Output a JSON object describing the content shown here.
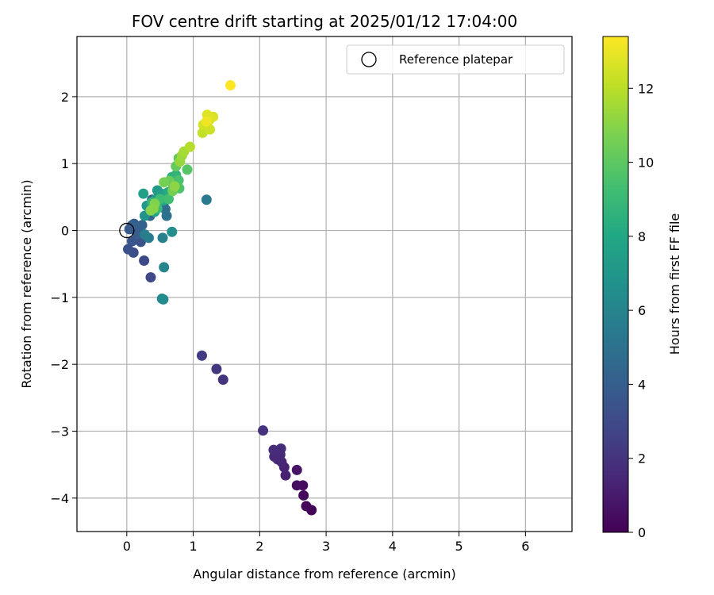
{
  "chart_data": {
    "type": "scatter",
    "title": "FOV centre drift starting at 2025/01/12 17:04:00",
    "xlabel": "Angular distance from reference (arcmin)",
    "ylabel": "Rotation from reference (arcmin)",
    "xlim": [
      -0.75,
      6.7
    ],
    "ylim": [
      -4.5,
      2.9
    ],
    "xticks": [
      0,
      1,
      2,
      3,
      4,
      5,
      6
    ],
    "yticks": [
      -4,
      -3,
      -2,
      -1,
      0,
      1,
      2
    ],
    "grid": true,
    "legend": {
      "placement": "top-right",
      "entries": [
        "Reference platepar"
      ]
    },
    "reference_point": {
      "x": 0,
      "y": 0
    },
    "colorbar": {
      "label": "Hours from first FF file",
      "colormap": "viridis",
      "range": [
        0,
        13.4
      ],
      "ticks": [
        0,
        2,
        4,
        6,
        8,
        10,
        12
      ]
    },
    "points": [
      {
        "x": 2.78,
        "y": -4.18,
        "c": 0.1
      },
      {
        "x": 2.7,
        "y": -4.12,
        "c": 0.2
      },
      {
        "x": 2.66,
        "y": -3.96,
        "c": 0.3
      },
      {
        "x": 2.65,
        "y": -3.81,
        "c": 0.4
      },
      {
        "x": 2.56,
        "y": -3.81,
        "c": 0.5
      },
      {
        "x": 2.56,
        "y": -3.58,
        "c": 0.7
      },
      {
        "x": 2.39,
        "y": -3.66,
        "c": 1.2
      },
      {
        "x": 2.37,
        "y": -3.54,
        "c": 1.3
      },
      {
        "x": 2.33,
        "y": -3.46,
        "c": 1.4
      },
      {
        "x": 2.27,
        "y": -3.42,
        "c": 1.5
      },
      {
        "x": 2.22,
        "y": -3.38,
        "c": 1.6
      },
      {
        "x": 2.31,
        "y": -3.35,
        "c": 1.6
      },
      {
        "x": 2.21,
        "y": -3.28,
        "c": 1.7
      },
      {
        "x": 2.32,
        "y": -3.26,
        "c": 1.7
      },
      {
        "x": 2.05,
        "y": -2.99,
        "c": 1.9
      },
      {
        "x": 1.45,
        "y": -2.23,
        "c": 2.0
      },
      {
        "x": 1.35,
        "y": -2.07,
        "c": 2.1
      },
      {
        "x": 1.13,
        "y": -1.87,
        "c": 2.3
      },
      {
        "x": 0.36,
        "y": -0.7,
        "c": 2.9
      },
      {
        "x": 0.26,
        "y": -0.45,
        "c": 3.0
      },
      {
        "x": 0.1,
        "y": -0.33,
        "c": 3.2
      },
      {
        "x": 0.02,
        "y": -0.28,
        "c": 3.3
      },
      {
        "x": 0.21,
        "y": -0.17,
        "c": 3.4
      },
      {
        "x": 0.08,
        "y": -0.16,
        "c": 3.5
      },
      {
        "x": 0.15,
        "y": -0.03,
        "c": 3.6
      },
      {
        "x": 0.04,
        "y": 0.02,
        "c": 3.7
      },
      {
        "x": 0.08,
        "y": 0.08,
        "c": 3.8
      },
      {
        "x": 0.18,
        "y": -0.05,
        "c": 3.9
      },
      {
        "x": 0.23,
        "y": 0.08,
        "c": 4.0
      },
      {
        "x": 0.11,
        "y": 0.1,
        "c": 4.1
      },
      {
        "x": 0.35,
        "y": 0.22,
        "c": 4.3
      },
      {
        "x": 0.38,
        "y": 0.46,
        "c": 4.5
      },
      {
        "x": 0.47,
        "y": 0.36,
        "c": 4.6
      },
      {
        "x": 0.55,
        "y": 0.38,
        "c": 4.8
      },
      {
        "x": 0.58,
        "y": 0.32,
        "c": 4.9
      },
      {
        "x": 0.6,
        "y": 0.22,
        "c": 5.0
      },
      {
        "x": 1.2,
        "y": 0.46,
        "c": 5.4
      },
      {
        "x": 0.33,
        "y": -0.11,
        "c": 5.6
      },
      {
        "x": 0.27,
        "y": -0.06,
        "c": 5.7
      },
      {
        "x": 0.54,
        "y": -0.11,
        "c": 5.8
      },
      {
        "x": 0.56,
        "y": -0.55,
        "c": 6.0
      },
      {
        "x": 0.53,
        "y": -1.02,
        "c": 6.2
      },
      {
        "x": 0.55,
        "y": -1.03,
        "c": 6.4
      },
      {
        "x": 0.68,
        "y": -0.02,
        "c": 6.6
      },
      {
        "x": 0.27,
        "y": 0.22,
        "c": 6.8
      },
      {
        "x": 0.3,
        "y": 0.37,
        "c": 7.0
      },
      {
        "x": 0.44,
        "y": 0.47,
        "c": 7.2
      },
      {
        "x": 0.46,
        "y": 0.6,
        "c": 7.3
      },
      {
        "x": 0.52,
        "y": 0.55,
        "c": 7.4
      },
      {
        "x": 0.25,
        "y": 0.55,
        "c": 7.5
      },
      {
        "x": 0.42,
        "y": 0.28,
        "c": 7.7
      },
      {
        "x": 0.55,
        "y": 0.45,
        "c": 7.9
      },
      {
        "x": 0.62,
        "y": 0.57,
        "c": 8.1
      },
      {
        "x": 0.7,
        "y": 0.68,
        "c": 8.3
      },
      {
        "x": 0.68,
        "y": 0.8,
        "c": 8.5
      },
      {
        "x": 0.74,
        "y": 0.83,
        "c": 8.7
      },
      {
        "x": 0.38,
        "y": 0.42,
        "c": 8.8
      },
      {
        "x": 0.46,
        "y": 0.33,
        "c": 9.0
      },
      {
        "x": 0.5,
        "y": 0.47,
        "c": 9.2
      },
      {
        "x": 0.63,
        "y": 0.47,
        "c": 9.3
      },
      {
        "x": 0.78,
        "y": 0.75,
        "c": 9.5
      },
      {
        "x": 0.79,
        "y": 0.63,
        "c": 9.6
      },
      {
        "x": 0.91,
        "y": 0.91,
        "c": 9.8
      },
      {
        "x": 0.78,
        "y": 1.08,
        "c": 10.0
      },
      {
        "x": 0.74,
        "y": 0.96,
        "c": 10.2
      },
      {
        "x": 0.64,
        "y": 0.74,
        "c": 10.3
      },
      {
        "x": 0.69,
        "y": 0.59,
        "c": 10.5
      },
      {
        "x": 0.56,
        "y": 0.72,
        "c": 10.6
      },
      {
        "x": 0.42,
        "y": 0.4,
        "c": 10.8
      },
      {
        "x": 0.36,
        "y": 0.3,
        "c": 10.9
      },
      {
        "x": 0.4,
        "y": 0.33,
        "c": 11.0
      },
      {
        "x": 0.72,
        "y": 0.66,
        "c": 11.1
      },
      {
        "x": 0.8,
        "y": 1.03,
        "c": 11.3
      },
      {
        "x": 0.83,
        "y": 1.12,
        "c": 11.4
      },
      {
        "x": 0.86,
        "y": 1.18,
        "c": 11.6
      },
      {
        "x": 0.95,
        "y": 1.25,
        "c": 11.9
      },
      {
        "x": 1.14,
        "y": 1.46,
        "c": 12.2
      },
      {
        "x": 1.25,
        "y": 1.51,
        "c": 12.4
      },
      {
        "x": 1.15,
        "y": 1.58,
        "c": 12.5
      },
      {
        "x": 1.24,
        "y": 1.65,
        "c": 12.6
      },
      {
        "x": 1.3,
        "y": 1.7,
        "c": 12.7
      },
      {
        "x": 1.21,
        "y": 1.73,
        "c": 12.8
      },
      {
        "x": 1.2,
        "y": 1.63,
        "c": 13.1
      },
      {
        "x": 1.56,
        "y": 2.17,
        "c": 13.4
      }
    ]
  }
}
